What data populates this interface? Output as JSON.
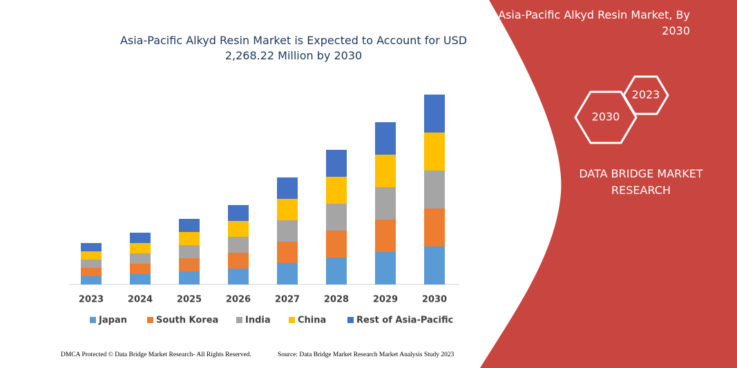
{
  "chart_data": {
    "type": "stacked_bar",
    "title": "Asia-Pacific Alkyd Resin Market is Expected to Account for USD 2,268.22 Million by 2030",
    "categories": [
      "2023",
      "2024",
      "2025",
      "2026",
      "2027",
      "2028",
      "2029",
      "2030"
    ],
    "series": [
      {
        "name": "Japan",
        "color": "#5b9bd5",
        "values": [
          12,
          15,
          19,
          23,
          31,
          39,
          47,
          55
        ]
      },
      {
        "name": "South Korea",
        "color": "#ed7d31",
        "values": [
          12,
          15,
          19,
          23,
          31,
          39,
          47,
          55
        ]
      },
      {
        "name": "India",
        "color": "#a5a5a5",
        "values": [
          12,
          15,
          19,
          23,
          31,
          39,
          47,
          55
        ]
      },
      {
        "name": "China",
        "color": "#ffc000",
        "values": [
          12,
          15,
          19,
          23,
          31,
          39,
          47,
          55
        ]
      },
      {
        "name": "Rest of Asia-Pacific",
        "color": "#4472c4",
        "values": [
          12,
          15,
          19,
          23,
          31,
          39,
          47,
          55
        ]
      }
    ],
    "ylim": [
      0,
      280
    ]
  },
  "panel": {
    "title": "Asia-Pacific Alkyd Resin Market, By 2030",
    "hex_large": "2030",
    "hex_small": "2023",
    "brand": "DATA BRIDGE MARKET RESEARCH"
  },
  "footer": {
    "left": "DMCA Protected © Data Bridge Market Research-  All Rights Reserved.",
    "right": "Source: Data Bridge Market Research  Market Analysis Study 2023"
  }
}
